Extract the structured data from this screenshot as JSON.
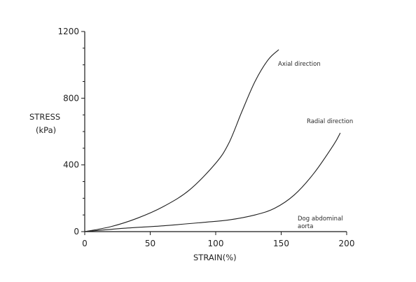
{
  "chart_data": {
    "type": "line",
    "title": "",
    "xlabel": "STRAIN(%)",
    "ylabel_line1": "STRESS",
    "ylabel_line2": "(kPa)",
    "xlim": [
      0,
      200
    ],
    "ylim": [
      0,
      1200
    ],
    "xticks": [
      0,
      50,
      100,
      150,
      200
    ],
    "yticks": [
      0,
      400,
      800,
      1200
    ],
    "grid": false,
    "series": [
      {
        "name": "Axial direction",
        "x": [
          0,
          20,
          40,
          60,
          80,
          100,
          110,
          120,
          130,
          140,
          148
        ],
        "y": [
          0,
          30,
          80,
          150,
          250,
          410,
          530,
          720,
          900,
          1030,
          1090
        ]
      },
      {
        "name": "Radial direction",
        "x": [
          0,
          30,
          60,
          90,
          110,
          130,
          145,
          160,
          175,
          190,
          195
        ],
        "y": [
          0,
          20,
          35,
          55,
          70,
          100,
          140,
          220,
          350,
          520,
          590
        ]
      }
    ],
    "annotations": [
      {
        "text": "Dog abdominal",
        "x": 161,
        "y": 80
      },
      {
        "text": "aorta",
        "x": 161,
        "y": 45
      }
    ]
  }
}
